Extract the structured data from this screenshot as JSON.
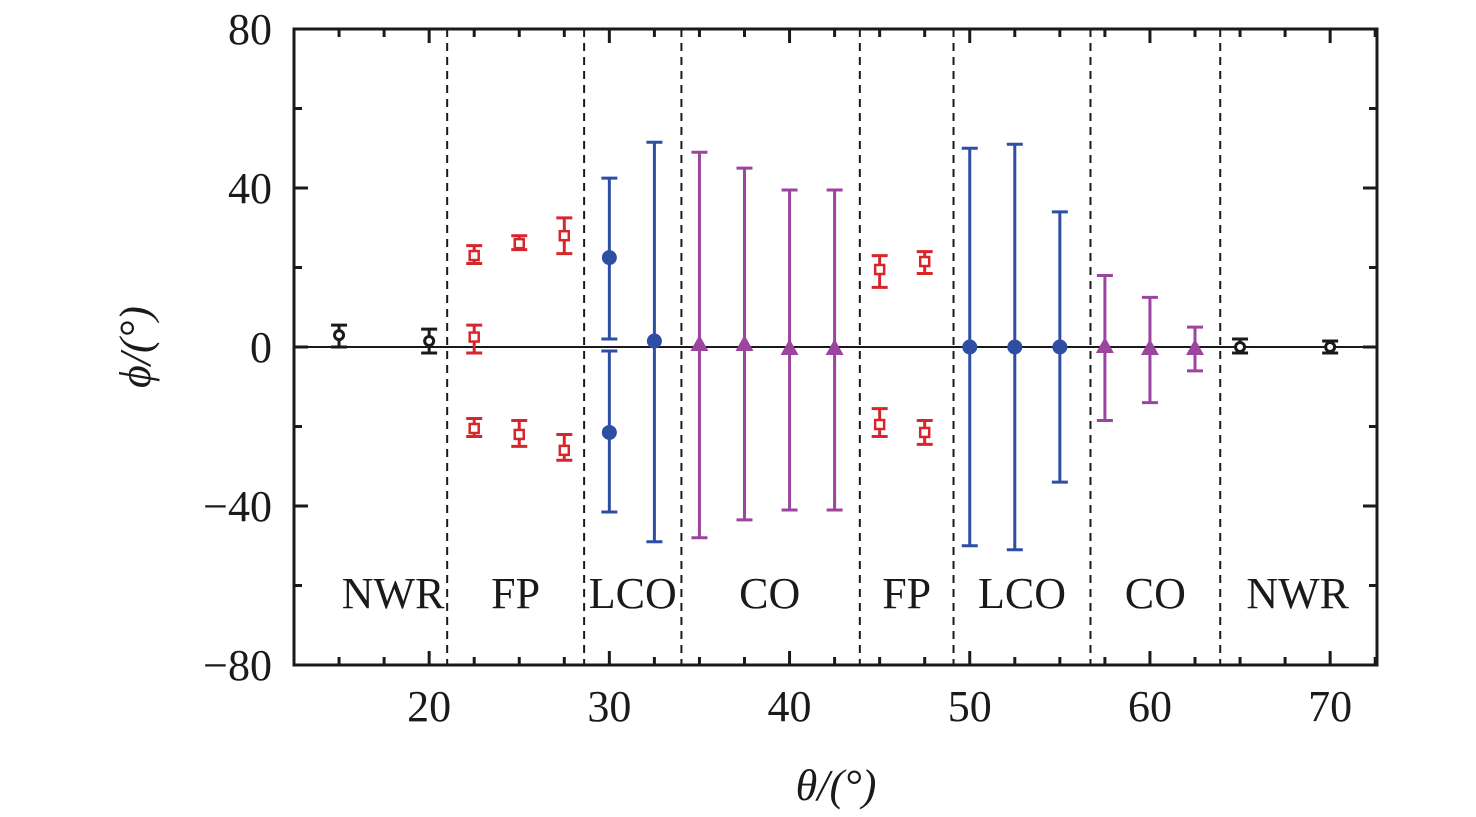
{
  "chart_data": {
    "type": "scatter",
    "title": "",
    "xlabel": "θ/(°)",
    "ylabel": "ϕ/(°)",
    "xlim": [
      12.5,
      72.6
    ],
    "ylim": [
      -80,
      80
    ],
    "x_ticks": [
      20,
      30,
      40,
      50,
      60,
      70
    ],
    "x_minor_step": 2.5,
    "y_ticks": [
      80,
      40,
      0,
      -40,
      -80
    ],
    "y_tick_labels": [
      "80",
      "40",
      "0",
      "−40",
      "−80"
    ],
    "y_minor_step": 20,
    "grid": false,
    "zero_line": true,
    "region_boundaries": [
      21.0,
      28.6,
      34.0,
      43.9,
      49.1,
      56.7,
      63.9
    ],
    "regions": [
      {
        "label": "NWR",
        "x": 18.0
      },
      {
        "label": "FP",
        "x": 24.8
      },
      {
        "label": "LCO",
        "x": 31.3
      },
      {
        "label": "CO",
        "x": 38.9
      },
      {
        "label": "FP",
        "x": 46.5
      },
      {
        "label": "LCO",
        "x": 52.9
      },
      {
        "label": "CO",
        "x": 60.3
      },
      {
        "label": "NWR",
        "x": 68.2
      }
    ],
    "series": [
      {
        "name": "NWR",
        "marker": "open-circle",
        "color": "#1a1a1a",
        "points": [
          {
            "x": 15,
            "y": 3,
            "lo": 0,
            "hi": 5.5
          },
          {
            "x": 20,
            "y": 1.5,
            "lo": -1.5,
            "hi": 4.5
          },
          {
            "x": 65,
            "y": 0,
            "lo": -1.5,
            "hi": 2
          },
          {
            "x": 70,
            "y": 0,
            "lo": -1.5,
            "hi": 1.5
          }
        ]
      },
      {
        "name": "FP",
        "marker": "open-square",
        "color": "#d7262b",
        "points": [
          {
            "x": 22.5,
            "y": 23,
            "lo": 21,
            "hi": 25.5
          },
          {
            "x": 22.5,
            "y": 2.5,
            "lo": -1.5,
            "hi": 5.5
          },
          {
            "x": 22.5,
            "y": -20.5,
            "lo": -22.5,
            "hi": -18
          },
          {
            "x": 25,
            "y": 26,
            "lo": 24.5,
            "hi": 28
          },
          {
            "x": 25,
            "y": -22,
            "lo": -25,
            "hi": -18.5
          },
          {
            "x": 27.5,
            "y": 28,
            "lo": 23.5,
            "hi": 32.5
          },
          {
            "x": 27.5,
            "y": -26,
            "lo": -28.5,
            "hi": -22
          },
          {
            "x": 45,
            "y": 19.5,
            "lo": 15,
            "hi": 23
          },
          {
            "x": 45,
            "y": -19.5,
            "lo": -22.5,
            "hi": -15.5
          },
          {
            "x": 47.5,
            "y": 21.5,
            "lo": 18.5,
            "hi": 24
          },
          {
            "x": 47.5,
            "y": -21.5,
            "lo": -24.5,
            "hi": -18.5
          }
        ]
      },
      {
        "name": "LCO",
        "marker": "filled-circle",
        "color": "#2d4ea3",
        "points": [
          {
            "x": 30,
            "y": 22.5,
            "lo": 2,
            "hi": 42.5
          },
          {
            "x": 30,
            "y": -21.5,
            "lo": -41.5,
            "hi": -1
          },
          {
            "x": 32.5,
            "y": 1.5,
            "lo": -49,
            "hi": 51.5
          },
          {
            "x": 50,
            "y": 0,
            "lo": -50,
            "hi": 50
          },
          {
            "x": 52.5,
            "y": 0,
            "lo": -51,
            "hi": 51
          },
          {
            "x": 55,
            "y": 0,
            "lo": -34,
            "hi": 34
          }
        ]
      },
      {
        "name": "CO",
        "marker": "filled-triangle",
        "color": "#9b44a0",
        "points": [
          {
            "x": 35,
            "y": 0.5,
            "lo": -48,
            "hi": 49
          },
          {
            "x": 37.5,
            "y": 0.5,
            "lo": -43.5,
            "hi": 45
          },
          {
            "x": 40,
            "y": -0.5,
            "lo": -41,
            "hi": 39.5
          },
          {
            "x": 42.5,
            "y": -0.5,
            "lo": -41,
            "hi": 39.5
          },
          {
            "x": 57.5,
            "y": 0,
            "lo": -18.5,
            "hi": 18
          },
          {
            "x": 60,
            "y": -0.5,
            "lo": -14,
            "hi": 12.5
          },
          {
            "x": 62.5,
            "y": -0.5,
            "lo": -6,
            "hi": 5
          }
        ]
      }
    ]
  }
}
